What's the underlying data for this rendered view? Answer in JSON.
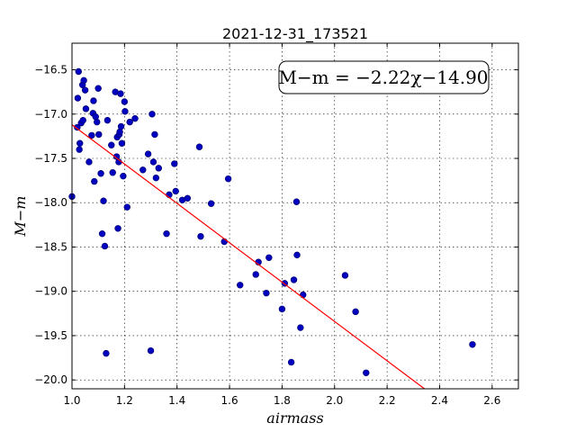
{
  "chart_data": {
    "type": "scatter",
    "title": "2021-12-31_173521",
    "xlabel": "airmass",
    "ylabel": "M−m",
    "xlim": [
      1.0,
      2.7
    ],
    "ylim": [
      -20.1,
      -16.2
    ],
    "y_inverted": true,
    "grid": true,
    "grid_style": "dotted",
    "x_ticks": [
      "1.0",
      "1.2",
      "1.4",
      "1.6",
      "1.8",
      "2.0",
      "2.2",
      "2.4",
      "2.6"
    ],
    "x_tick_values": [
      1.0,
      1.2,
      1.4,
      1.6,
      1.8,
      2.0,
      2.2,
      2.4,
      2.6
    ],
    "y_ticks": [
      "−16.5",
      "−17.0",
      "−17.5",
      "−18.0",
      "−18.5",
      "−19.0",
      "−19.5",
      "−20.0"
    ],
    "y_tick_values": [
      -16.5,
      -17.0,
      -17.5,
      -18.0,
      -18.5,
      -19.0,
      -19.5,
      -20.0
    ],
    "annotation": "M−m = −2.22χ−14.90",
    "fit": {
      "slope": -2.22,
      "intercept": -14.9,
      "color": "#ff0000"
    },
    "marker_color": "#0000bf",
    "series": [
      {
        "points": [
          [
            1.0,
            -17.93
          ],
          [
            1.02,
            -17.15
          ],
          [
            1.022,
            -16.82
          ],
          [
            1.025,
            -16.52
          ],
          [
            1.028,
            -17.4
          ],
          [
            1.03,
            -17.33
          ],
          [
            1.035,
            -17.1
          ],
          [
            1.04,
            -16.67
          ],
          [
            1.042,
            -17.07
          ],
          [
            1.045,
            -16.62
          ],
          [
            1.05,
            -16.73
          ],
          [
            1.053,
            -16.94
          ],
          [
            1.065,
            -17.54
          ],
          [
            1.075,
            -17.24
          ],
          [
            1.08,
            -16.99
          ],
          [
            1.082,
            -16.85
          ],
          [
            1.085,
            -17.76
          ],
          [
            1.09,
            -17.03
          ],
          [
            1.095,
            -17.09
          ],
          [
            1.1,
            -16.71
          ],
          [
            1.102,
            -17.23
          ],
          [
            1.11,
            -17.67
          ],
          [
            1.115,
            -18.35
          ],
          [
            1.12,
            -17.98
          ],
          [
            1.125,
            -18.49
          ],
          [
            1.13,
            -19.7
          ],
          [
            1.135,
            -17.07
          ],
          [
            1.15,
            -17.35
          ],
          [
            1.155,
            -17.66
          ],
          [
            1.165,
            -16.75
          ],
          [
            1.17,
            -17.48
          ],
          [
            1.172,
            -17.26
          ],
          [
            1.175,
            -18.29
          ],
          [
            1.178,
            -17.54
          ],
          [
            1.18,
            -17.23
          ],
          [
            1.182,
            -17.2
          ],
          [
            1.185,
            -16.77
          ],
          [
            1.187,
            -17.14
          ],
          [
            1.19,
            -17.33
          ],
          [
            1.195,
            -17.7
          ],
          [
            1.2,
            -16.86
          ],
          [
            1.202,
            -16.97
          ],
          [
            1.21,
            -18.05
          ],
          [
            1.22,
            -17.09
          ],
          [
            1.24,
            -17.05
          ],
          [
            1.27,
            -17.63
          ],
          [
            1.29,
            -17.45
          ],
          [
            1.3,
            -19.67
          ],
          [
            1.305,
            -17.0
          ],
          [
            1.31,
            -17.54
          ],
          [
            1.315,
            -17.23
          ],
          [
            1.32,
            -17.72
          ],
          [
            1.33,
            -17.61
          ],
          [
            1.36,
            -18.35
          ],
          [
            1.37,
            -17.91
          ],
          [
            1.39,
            -17.56
          ],
          [
            1.395,
            -17.87
          ],
          [
            1.42,
            -17.97
          ],
          [
            1.44,
            -17.95
          ],
          [
            1.485,
            -17.37
          ],
          [
            1.49,
            -18.38
          ],
          [
            1.53,
            -18.01
          ],
          [
            1.58,
            -18.44
          ],
          [
            1.595,
            -17.73
          ],
          [
            1.64,
            -18.93
          ],
          [
            1.7,
            -18.81
          ],
          [
            1.71,
            -18.67
          ],
          [
            1.74,
            -19.02
          ],
          [
            1.75,
            -18.62
          ],
          [
            1.8,
            -19.2
          ],
          [
            1.81,
            -18.91
          ],
          [
            1.835,
            -19.8
          ],
          [
            1.845,
            -18.87
          ],
          [
            1.855,
            -17.99
          ],
          [
            1.857,
            -18.59
          ],
          [
            1.87,
            -19.41
          ],
          [
            1.88,
            -19.04
          ],
          [
            2.04,
            -18.82
          ],
          [
            2.08,
            -19.23
          ],
          [
            2.12,
            -19.92
          ],
          [
            2.525,
            -19.6
          ]
        ]
      }
    ]
  }
}
